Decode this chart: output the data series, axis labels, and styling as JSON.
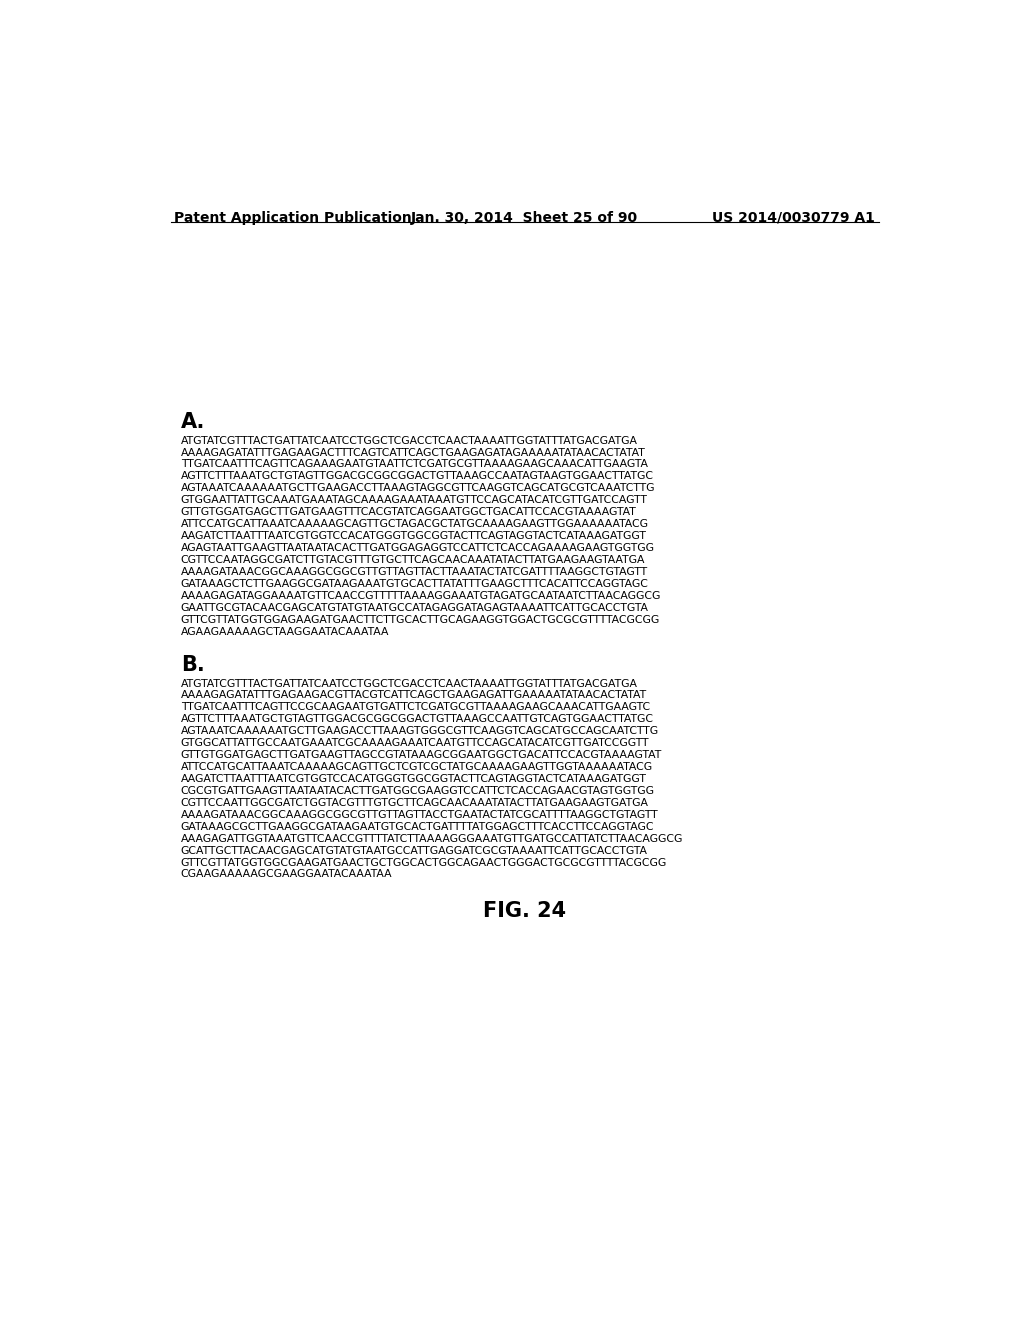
{
  "header_left": "Patent Application Publication",
  "header_mid": "Jan. 30, 2014  Sheet 25 of 90",
  "header_right": "US 2014/0030779 A1",
  "section_a_label": "A.",
  "section_a_lines": [
    "ATGTATCGTTTACTGATTATCAATCCTGGCTCGACCTCAACTAAAATTGGTATTTATGACGATGA",
    "AAAAGAGATATTTGAGAAGACTTTCAGTCATTCAGCTGAAGAGATAGAAAAATATAACACTATAT",
    "TTGATCAATTTCAGTTCAGAAAGAATGTAATTCTCGATGCGTTAAAAGAAGCAAACATTGAAGTA",
    "AGTTCTTTAAATGCTGTAGTTGGACGCGGCGGACTGTTAAAGCCAATAGTAAGTGGAACTTATGC",
    "AGTAAATCAAAAAATGCTTGAAGACCTTAAAGTAGGCGTTCAAGGTCAGCATGCGTCAAATCTTG",
    "GTGGAATTATTGCAAATGAAATAGCAAAAGAAATAAATGTTCCAGCATACATCGTTGATCCAGTT",
    "GTTGTGGATGAGCTTGATGAAGTTTCACGTATCAGGAATGGCTGACATTCCACGTAAAAGTAT",
    "ATTCCATGCATTAAATCAAAAAGCAGTTGCTAGACGCTATGCAAAAGAAGTTGGAAAAAATACG",
    "AAGATCTTAATTTAATCGTGGTCCACATGGGTGGCGGTACTTCAGTAGGTACTCATAAAGATGGT",
    "AGAGTAATTGAAGTTAATAATACACTTGATGGAGAGGTCCATTCTCACCAGAAAAGAAGTGGTGG",
    "CGTTCCAATAGGCGATCTTGTACGTTTGTGCTTCAGCAACAAATATACTTATGAAGAAGTAATGA",
    "AAAAGATAAACGGCAAAGGCGGCGTTGTTAGTTACTTAAATACTATCGATTTTAAGGCTGTAGTT",
    "GATAAAGCTCTTGAAGGCGATAAGAAATGTGCACTTATATTTGAAGCTTTCACATTCCAGGTAGC",
    "AAAAGAGATAGGAAAATGTTCAACCGTTTTTAAAAGGAAATGTAGATGCAATAATCTTAACAGGCG",
    "GAATTGCGTACAACGAGCATGTATGTAATGCCATAGAGGATAGAGTAAAATTCATTGCACCTGTA",
    "GTTCGTTATGGTGGAGAAGATGAACTTCTTGCACTTGCAGAAGGTGGACTGCGCGTTTTACGCGG",
    "AGAAGAAAAAGCTAAGGAATACAAATAA"
  ],
  "section_b_label": "B.",
  "section_b_lines": [
    "ATGTATCGTTTACTGATTATCAATCCTGGCTCGACCTCAACTAAAATTGGTATTTATGACGATGA",
    "AAAAGAGATATTTGAGAAGACGTTACGTCATTCAGCTGAAGAGATTGAAAAATATAACACTATAT",
    "TTGATCAATTTCAGTTCCGCAAGAATGTGATTCTCGATGCGTTAAAAGAAGCAAACATTGAAGTC",
    "AGTTCTTTAAATGCTGTAGTTGGACGCGGCGGACTGTTAAAGCCAATTGTCAGTGGAACTTATGC",
    "AGTAAATCAAAAAATGCTTGAAGACCTTAAAGTGGGCGTTCAAGGTCAGCATGCCAGCAATCTTG",
    "GTGGCATTATTGCCAATGAAATCGCAAAAGAAATCAATGTTCCAGCATACATCGTTGATCCGGTT",
    "GTTGTGGATGAGCTTGATGAAGTTAGCCGTATAAAGCGGAATGGCTGACATTCCACGTAAAAGTAT",
    "ATTCCATGCATTAAATCAAAAAGCAGTTGCTCGTCGCTATGCAAAAGAAGTTGGTAAAAAATACG",
    "AAGATCTTAATTTAATCGTGGTCCACATGGGTGGCGGTACTTCAGTAGGTACTCATAAAGATGGT",
    "CGCGTGATTGAAGTTAATAATACACTTGATGGCGAAGGTCCATTCTCACCAGAACGTAGTGGTGG",
    "CGTTCCAATTGGCGATCTGGTACGTTTGTGCTTCAGCAACAAATATACTTATGAAGAAGTGATGA",
    "AAAAGATAAACGGCAAAGGCGGCGTTGTTAGTTACCTGAATACTATCGCATTTTAAGGCTGTAGTT",
    "GATAAAGCGCTTGAAGGCGATAAGAATGTGCACTGATTTTATGGAGCTTTCACCTTCCAGGTAGC",
    "AAAGAGATTGGTAAATGTTCAACCGTTTTATCTTAAAAGGGAAATGTTGATGCCATTATCTTAACAGGCG",
    "GCATTGCTTACAACGAGCATGTATGTAATGCCATTGAGGATCGCGTAAAATTCATTGCACCTGTA",
    "GTTCGTTATGGTGGCGAAGATGAACTGCTGGCACTGGCAGAACTGGGACTGCGCGTTTTACGCGG",
    "CGAAGAAAAAGCGAAGGAATACAAATAA"
  ],
  "fig_label": "FIG. 24",
  "bg_color": "#ffffff",
  "text_color": "#000000",
  "header_font_size": 10,
  "section_label_font_size": 15,
  "seq_font_size": 7.8,
  "fig_label_font_size": 15
}
